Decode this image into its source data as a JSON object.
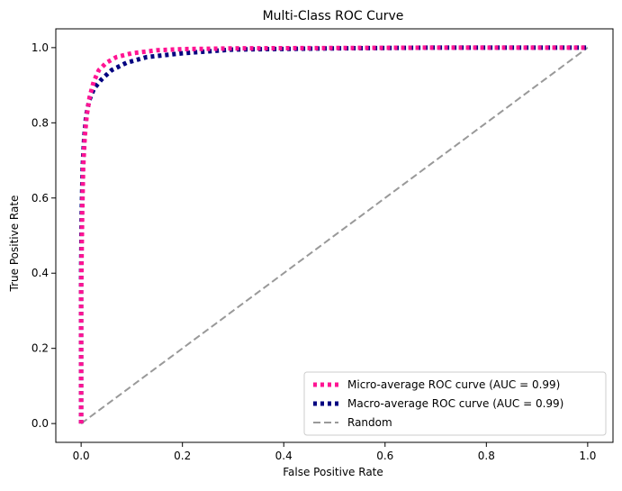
{
  "chart_data": {
    "type": "line",
    "title": "Multi-Class ROC Curve",
    "xlabel": "False Positive Rate",
    "ylabel": "True Positive Rate",
    "xlim": [
      -0.05,
      1.05
    ],
    "ylim": [
      -0.05,
      1.05
    ],
    "xticks": [
      0.0,
      0.2,
      0.4,
      0.6,
      0.8,
      1.0
    ],
    "yticks": [
      0.0,
      0.2,
      0.4,
      0.6,
      0.8,
      1.0
    ],
    "xtick_labels": [
      "0.0",
      "0.2",
      "0.4",
      "0.6",
      "0.8",
      "1.0"
    ],
    "ytick_labels": [
      "0.0",
      "0.2",
      "0.4",
      "0.6",
      "0.8",
      "1.0"
    ],
    "grid": false,
    "legend_position": "lower-right",
    "series": [
      {
        "name": "Micro-average ROC curve (AUC = 0.99)",
        "color": "#ff1493",
        "style": "dotted",
        "x": [
          0.0,
          0.0,
          0.0,
          0.002,
          0.004,
          0.007,
          0.011,
          0.017,
          0.025,
          0.035,
          0.05,
          0.07,
          0.1,
          0.15,
          0.2,
          0.3,
          0.5,
          0.7,
          1.0
        ],
        "y": [
          0.0,
          0.15,
          0.35,
          0.55,
          0.68,
          0.76,
          0.82,
          0.87,
          0.91,
          0.94,
          0.96,
          0.975,
          0.985,
          0.993,
          0.996,
          0.998,
          0.999,
          1.0,
          1.0
        ]
      },
      {
        "name": "Macro-average ROC curve (AUC = 0.99)",
        "color": "#000080",
        "style": "dotted",
        "x": [
          0.0,
          0.0,
          0.0,
          0.001,
          0.003,
          0.006,
          0.01,
          0.016,
          0.025,
          0.04,
          0.06,
          0.09,
          0.13,
          0.2,
          0.3,
          0.5,
          0.7,
          1.0
        ],
        "y": [
          0.0,
          0.2,
          0.4,
          0.55,
          0.68,
          0.76,
          0.82,
          0.86,
          0.89,
          0.915,
          0.94,
          0.96,
          0.975,
          0.985,
          0.995,
          0.998,
          1.0,
          1.0
        ]
      },
      {
        "name": "Random",
        "color": "#999999",
        "style": "dashed",
        "x": [
          0.0,
          1.0
        ],
        "y": [
          0.0,
          1.0
        ]
      }
    ]
  }
}
